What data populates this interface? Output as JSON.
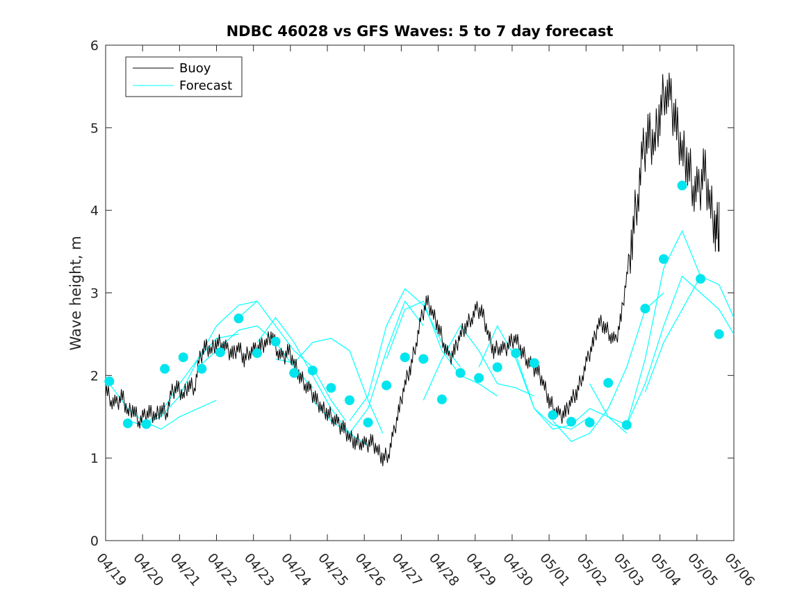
{
  "chart_data": {
    "type": "line",
    "title": "NDBC 46028 vs GFS Waves: 5 to 7 day forecast",
    "xlabel": "",
    "ylabel": "Wave height, m",
    "ylim": [
      0,
      6
    ],
    "xlim": [
      "04/19",
      "05/06"
    ],
    "grid": false,
    "legend_location": "top-left",
    "x_tick_labels": [
      "04/19",
      "04/20",
      "04/21",
      "04/22",
      "04/23",
      "04/24",
      "04/25",
      "04/26",
      "04/27",
      "04/28",
      "04/29",
      "04/30",
      "05/01",
      "05/02",
      "05/03",
      "05/04",
      "05/05",
      "05/06"
    ],
    "y_tick_labels": [
      "0",
      "1",
      "2",
      "3",
      "4",
      "5",
      "6"
    ],
    "colors": {
      "buoy": "#000000",
      "forecast": "#00ffff",
      "marker": "#00e5ee"
    },
    "series": [
      {
        "name": "Buoy",
        "color": "#000000",
        "x_day": [
          0,
          0.15,
          0.3,
          0.45,
          0.6,
          0.75,
          0.9,
          1.05,
          1.2,
          1.35,
          1.5,
          1.65,
          1.8,
          1.95,
          2.1,
          2.25,
          2.4,
          2.55,
          2.7,
          2.85,
          3.0,
          3.15,
          3.3,
          3.45,
          3.6,
          3.75,
          3.9,
          4.05,
          4.2,
          4.35,
          4.5,
          4.65,
          4.8,
          4.95,
          5.1,
          5.25,
          5.4,
          5.55,
          5.7,
          5.85,
          6.0,
          6.15,
          6.3,
          6.45,
          6.6,
          6.75,
          6.9,
          7.05,
          7.2,
          7.35,
          7.5,
          7.65,
          7.8,
          7.95,
          8.1,
          8.25,
          8.4,
          8.55,
          8.7,
          8.85,
          9.0,
          9.15,
          9.3,
          9.45,
          9.6,
          9.75,
          9.9,
          10.05,
          10.2,
          10.35,
          10.5,
          10.65,
          10.8,
          10.95,
          11.1,
          11.25,
          11.4,
          11.55,
          11.7,
          11.85,
          12.0,
          12.15,
          12.3,
          12.45,
          12.6,
          12.75,
          12.9,
          13.05,
          13.2,
          13.35,
          13.5,
          13.65,
          13.8,
          13.95,
          14.1,
          14.25,
          14.4,
          14.55,
          14.7,
          14.85,
          15.0,
          15.15,
          15.3,
          15.45,
          15.6,
          15.75,
          15.9,
          16.05,
          16.2,
          16.35,
          16.5,
          16.6
        ],
        "values": [
          1.85,
          1.7,
          1.65,
          1.75,
          1.55,
          1.6,
          1.45,
          1.5,
          1.55,
          1.5,
          1.6,
          1.55,
          1.8,
          1.85,
          1.75,
          1.9,
          1.85,
          2.2,
          2.35,
          2.3,
          2.4,
          2.4,
          2.3,
          2.25,
          2.35,
          2.2,
          2.3,
          2.3,
          2.35,
          2.4,
          2.5,
          2.3,
          2.2,
          2.3,
          2.15,
          2.0,
          1.9,
          1.8,
          1.7,
          1.6,
          1.55,
          1.5,
          1.4,
          1.35,
          1.25,
          1.2,
          1.2,
          1.15,
          1.2,
          1.1,
          1.0,
          1.05,
          1.3,
          1.6,
          1.9,
          2.1,
          2.4,
          2.7,
          2.9,
          2.75,
          2.6,
          2.4,
          2.2,
          2.3,
          2.5,
          2.6,
          2.7,
          2.8,
          2.75,
          2.5,
          2.3,
          2.35,
          2.3,
          2.4,
          2.45,
          2.3,
          2.2,
          2.1,
          2.05,
          1.9,
          1.7,
          1.6,
          1.5,
          1.55,
          1.7,
          1.8,
          2.0,
          2.2,
          2.4,
          2.65,
          2.6,
          2.5,
          2.4,
          2.7,
          3.2,
          3.7,
          4.2,
          4.7,
          4.9,
          4.8,
          5.2,
          5.5,
          5.3,
          5.0,
          4.7,
          4.6,
          4.3,
          4.2,
          4.5,
          4.1,
          3.8,
          3.8
        ]
      },
      {
        "name": "Forecast",
        "color": "#00ffff",
        "segments": [
          {
            "x": [
              0.1,
              0.6,
              1.0,
              1.5,
              2.0,
              2.5,
              3.0
            ],
            "y": [
              1.9,
              1.6,
              1.45,
              1.35,
              1.5,
              1.6,
              1.7
            ]
          },
          {
            "x": [
              0.6,
              1.0,
              1.5,
              2.0,
              2.5,
              3.0,
              3.6
            ],
            "y": [
              1.45,
              1.4,
              1.55,
              1.9,
              2.2,
              2.45,
              2.5
            ]
          },
          {
            "x": [
              1.0,
              1.5,
              2.0,
              2.5,
              3.0,
              3.6,
              4.1
            ],
            "y": [
              1.4,
              1.5,
              1.75,
              2.2,
              2.6,
              2.85,
              2.9
            ]
          },
          {
            "x": [
              2.5,
              3.0,
              3.6,
              4.1,
              4.6,
              5.1,
              5.6
            ],
            "y": [
              2.1,
              2.3,
              2.55,
              2.6,
              2.4,
              2.1,
              1.85
            ]
          },
          {
            "x": [
              3.6,
              4.1,
              4.6,
              5.1,
              5.6,
              6.1,
              6.5
            ],
            "y": [
              2.7,
              2.9,
              2.6,
              2.3,
              2.1,
              1.7,
              1.45
            ]
          },
          {
            "x": [
              4.1,
              4.6,
              5.1,
              5.6,
              6.1,
              6.6,
              7.1
            ],
            "y": [
              2.4,
              2.7,
              2.4,
              2.0,
              1.6,
              1.3,
              1.15
            ]
          },
          {
            "x": [
              4.6,
              5.1,
              5.6,
              6.1,
              6.6,
              7.1,
              7.5
            ],
            "y": [
              2.2,
              2.15,
              2.4,
              2.45,
              2.3,
              1.7,
              1.3
            ]
          },
          {
            "x": [
              5.6,
              6.1,
              6.6,
              7.1,
              7.6,
              8.1,
              8.6
            ],
            "y": [
              1.7,
              1.45,
              1.3,
              1.6,
              2.3,
              2.9,
              2.6
            ]
          },
          {
            "x": [
              6.6,
              7.1,
              7.6,
              8.1,
              8.6,
              9.1,
              9.6
            ],
            "y": [
              1.45,
              1.75,
              2.6,
              3.05,
              2.85,
              2.4,
              2.1
            ]
          },
          {
            "x": [
              7.6,
              8.1,
              8.6,
              9.1,
              9.6,
              10.1,
              10.6
            ],
            "y": [
              2.2,
              2.8,
              2.9,
              2.3,
              2.0,
              1.9,
              1.75
            ]
          },
          {
            "x": [
              8.6,
              9.1,
              9.6,
              10.1,
              10.6,
              11.1,
              11.6
            ],
            "y": [
              1.7,
              2.2,
              2.6,
              2.3,
              1.9,
              1.85,
              1.75
            ]
          },
          {
            "x": [
              10.1,
              10.6,
              11.1,
              11.6,
              12.1,
              12.6,
              13.1
            ],
            "y": [
              2.1,
              2.6,
              2.2,
              1.6,
              1.4,
              1.35,
              1.5
            ]
          },
          {
            "x": [
              11.1,
              11.6,
              12.1,
              12.6,
              13.1,
              13.6,
              14.1
            ],
            "y": [
              2.25,
              1.6,
              1.35,
              1.4,
              1.6,
              1.5,
              1.3
            ]
          },
          {
            "x": [
              12.1,
              12.6,
              13.1,
              13.6,
              14.1,
              14.6,
              15.1
            ],
            "y": [
              1.45,
              1.2,
              1.3,
              1.6,
              2.1,
              2.8,
              3.0
            ]
          },
          {
            "x": [
              13.1,
              13.6,
              14.1,
              14.6,
              15.1,
              15.6,
              16.1
            ],
            "y": [
              1.9,
              1.5,
              1.4,
              2.2,
              3.3,
              3.75,
              3.2
            ]
          },
          {
            "x": [
              14.1,
              14.6,
              15.1,
              15.6,
              16.1,
              16.6,
              17.0
            ],
            "y": [
              1.4,
              1.9,
              2.6,
              3.2,
              3.0,
              2.8,
              2.5
            ]
          },
          {
            "x": [
              14.6,
              15.1,
              15.6,
              16.1,
              16.6,
              17.0
            ],
            "y": [
              1.8,
              2.4,
              2.8,
              3.2,
              3.1,
              2.7
            ]
          }
        ],
        "marker_x": [
          0.1,
          0.6,
          1.1,
          1.6,
          2.1,
          2.6,
          3.1,
          3.6,
          4.1,
          4.6,
          5.1,
          5.6,
          6.1,
          6.6,
          7.1,
          7.6,
          8.1,
          8.6,
          9.1,
          9.6,
          10.1,
          10.6,
          11.1,
          11.6,
          12.1,
          12.6,
          13.1,
          13.6,
          14.1,
          14.6,
          15.1,
          15.6,
          16.1,
          16.6
        ],
        "marker_values": [
          1.93,
          1.42,
          1.41,
          2.08,
          2.22,
          2.08,
          2.28,
          2.69,
          2.27,
          2.41,
          2.03,
          2.06,
          1.85,
          1.7,
          1.43,
          1.88,
          2.22,
          2.2,
          1.71,
          2.03,
          1.97,
          2.1,
          2.27,
          2.15,
          1.52,
          1.44,
          1.43,
          1.91,
          1.4,
          2.81,
          3.41,
          4.3,
          3.17,
          2.5
        ]
      }
    ]
  }
}
